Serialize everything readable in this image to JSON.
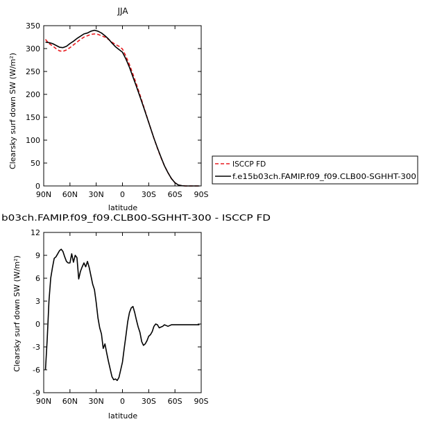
{
  "chart_data": [
    {
      "type": "line",
      "title": "JJA",
      "xlabel": "latitude",
      "ylabel": "Clearsky surf down SW (W/m²)",
      "xlim": [
        90,
        -90
      ],
      "ylim": [
        0,
        350
      ],
      "xticks": [
        90,
        60,
        30,
        0,
        -30,
        -60,
        -90
      ],
      "xtick_labels": [
        "90N",
        "60N",
        "30N",
        "0",
        "30S",
        "60S",
        "90S"
      ],
      "yticks": [
        0,
        50,
        100,
        150,
        200,
        250,
        300,
        350
      ],
      "ytick_labels": [
        "0",
        "50",
        "100",
        "150",
        "200",
        "250",
        "300",
        "350"
      ],
      "grid": false,
      "legend_position": "right",
      "series": [
        {
          "name": "ISCCP FD",
          "color": "#e8191d",
          "dash": "dashed",
          "x": [
            88,
            84,
            80,
            76,
            72,
            68,
            64,
            60,
            56,
            52,
            48,
            44,
            40,
            36,
            32,
            28,
            24,
            20,
            16,
            12,
            8,
            4,
            0,
            -4,
            -8,
            -12,
            -16,
            -20,
            -24,
            -28,
            -32,
            -36,
            -40,
            -44,
            -48,
            -52,
            -56,
            -60,
            -64,
            -68,
            -72,
            -76,
            -80,
            -84,
            -88
          ],
          "y": [
            320,
            311,
            306,
            300,
            295,
            294,
            297,
            302,
            308,
            314,
            320,
            325,
            328,
            331,
            332,
            331,
            328,
            325,
            320,
            314,
            309,
            305,
            299,
            283,
            265,
            244,
            222,
            199,
            175,
            151,
            127,
            104,
            82,
            62,
            44,
            29,
            16,
            7,
            2,
            0.5,
            0,
            0,
            0,
            0,
            0
          ]
        },
        {
          "name": "f.e15b03ch.FAMIP.f09_f09.CLB00-SGHHT-300",
          "color": "#000000",
          "dash": "solid",
          "x": [
            88,
            84,
            80,
            76,
            72,
            68,
            64,
            60,
            56,
            52,
            48,
            44,
            40,
            36,
            32,
            28,
            24,
            20,
            16,
            12,
            8,
            4,
            0,
            -4,
            -8,
            -12,
            -16,
            -20,
            -24,
            -28,
            -32,
            -36,
            -40,
            -44,
            -48,
            -52,
            -56,
            -60,
            -64,
            -68,
            -72,
            -76,
            -80,
            -84,
            -88
          ],
          "y": [
            314,
            313,
            311,
            307,
            303,
            302,
            305,
            311,
            316,
            322,
            327,
            332,
            334,
            338,
            340,
            338,
            334,
            328,
            321,
            312,
            304,
            298,
            292,
            277,
            259,
            238,
            217,
            195,
            173,
            150,
            127,
            104,
            83,
            63,
            44,
            29,
            16,
            7,
            2,
            0.5,
            0,
            0,
            0,
            0,
            0
          ]
        }
      ]
    },
    {
      "type": "line",
      "title": "b03ch.FAMIP.f09_f09.CLB00-SGHHT-300 - ISCCP FD",
      "xlabel": "latitude",
      "ylabel": "Clearsky surf down SW (W/m²)",
      "xlim": [
        90,
        -90
      ],
      "ylim": [
        -9,
        12
      ],
      "xticks": [
        90,
        60,
        30,
        0,
        -30,
        -60,
        -90
      ],
      "xtick_labels": [
        "90N",
        "60N",
        "30N",
        "0",
        "30S",
        "60S",
        "90S"
      ],
      "yticks": [
        -9,
        -6,
        -3,
        0,
        3,
        6,
        9,
        12
      ],
      "ytick_labels": [
        "-9",
        "-6",
        "-3",
        "0",
        "3",
        "6",
        "9",
        "12"
      ],
      "grid": false,
      "series": [
        {
          "color": "#000000",
          "dash": "solid",
          "x": [
            88,
            86,
            84,
            82,
            80,
            78,
            76,
            74,
            72,
            70,
            68,
            66,
            64,
            62,
            60,
            58,
            56,
            54,
            52,
            50,
            48,
            46,
            44,
            42,
            40,
            38,
            36,
            34,
            32,
            30,
            28,
            26,
            24,
            22,
            20,
            18,
            16,
            14,
            12,
            10,
            8,
            6,
            4,
            2,
            0,
            -2,
            -4,
            -6,
            -8,
            -10,
            -12,
            -14,
            -16,
            -18,
            -20,
            -22,
            -24,
            -26,
            -28,
            -30,
            -32,
            -34,
            -36,
            -38,
            -40,
            -42,
            -44,
            -46,
            -48,
            -50,
            -52,
            -54,
            -56,
            -58,
            -60,
            -62,
            -64,
            -66,
            -68,
            -70,
            -72,
            -74,
            -76,
            -78,
            -80,
            -82,
            -84,
            -86,
            -88
          ],
          "y": [
            -6,
            -2,
            3,
            6,
            7.4,
            8.6,
            8.8,
            9.2,
            9.6,
            9.8,
            9.5,
            8.8,
            8.2,
            8.0,
            8.0,
            9.2,
            8.1,
            9.0,
            8.7,
            5.9,
            6.9,
            7.5,
            8.0,
            7.5,
            8.2,
            7.4,
            6.3,
            5.2,
            4.5,
            2.8,
            0.8,
            -0.5,
            -1.3,
            -3.2,
            -2.6,
            -3.8,
            -4.9,
            -5.9,
            -6.9,
            -7.3,
            -7.2,
            -7.4,
            -7.0,
            -6.0,
            -5.0,
            -3.2,
            -1.5,
            0.3,
            1.5,
            2.1,
            2.3,
            1.5,
            0.5,
            -0.4,
            -1.1,
            -2.3,
            -2.8,
            -2.6,
            -2.2,
            -1.6,
            -1.4,
            -1.0,
            -0.3,
            0.0,
            -0.1,
            -0.5,
            -0.4,
            -0.3,
            -0.1,
            -0.2,
            -0.3,
            -0.2,
            -0.1,
            -0.1,
            -0.1,
            -0.1,
            -0.1,
            -0.1,
            -0.1,
            -0.1,
            -0.1,
            -0.1,
            -0.1,
            -0.1,
            -0.1,
            -0.1,
            -0.1,
            -0.1,
            -0.1
          ]
        }
      ]
    }
  ]
}
